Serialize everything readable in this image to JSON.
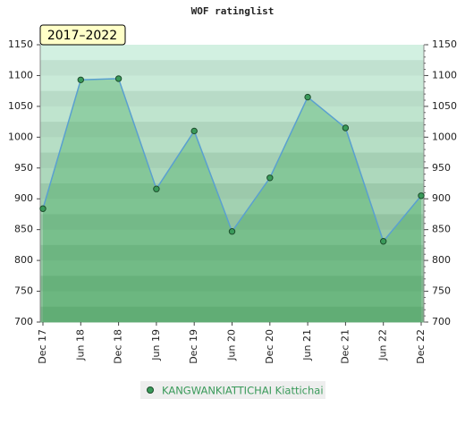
{
  "chart_data": {
    "type": "line",
    "title": "WOF ratinglist",
    "annotation": "2017–2022",
    "categories": [
      "Dec 17",
      "Jun 18",
      "Dec 18",
      "Jun 19",
      "Dec 19",
      "Jun 20",
      "Dec 20",
      "Jun 21",
      "Dec 21",
      "Jun 22",
      "Dec 22"
    ],
    "series": [
      {
        "name": "KANGWANKIATTICHAI Kiattichai",
        "color": "#3a9a5a",
        "values": [
          884,
          1093,
          1095,
          916,
          1010,
          847,
          934,
          1065,
          1015,
          831,
          905
        ]
      }
    ],
    "ylim": [
      700,
      1150
    ],
    "yticks": [
      700,
      750,
      800,
      850,
      900,
      950,
      1000,
      1050,
      1100,
      1150
    ],
    "y2lim": [
      700,
      1150
    ],
    "y2ticks": [
      700,
      750,
      800,
      850,
      900,
      950,
      1000,
      1050,
      1100,
      1150
    ]
  }
}
